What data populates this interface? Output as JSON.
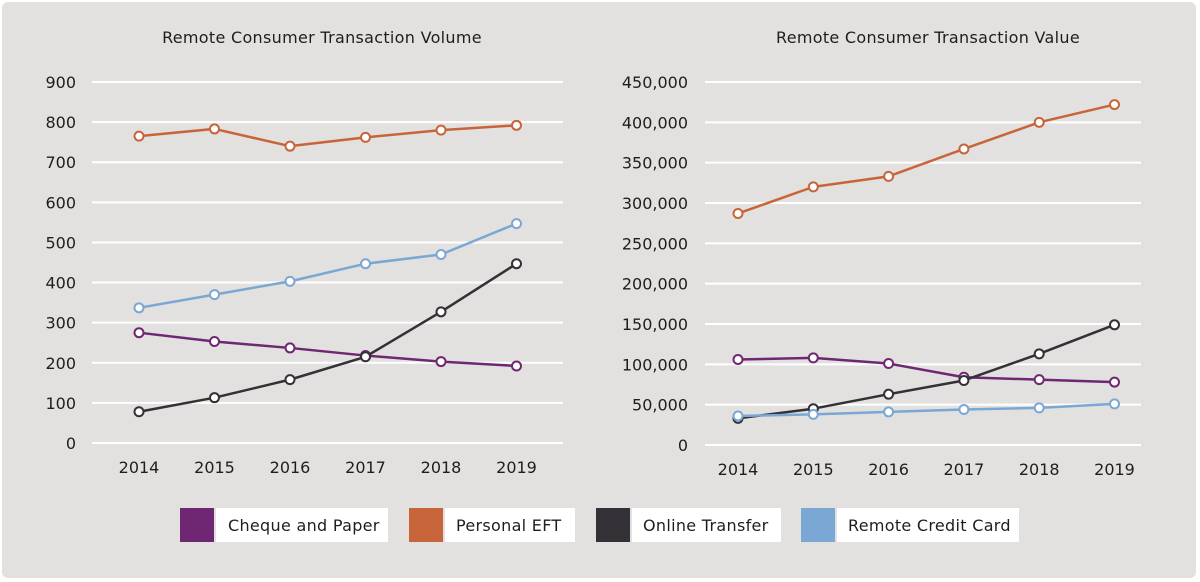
{
  "chart_data": [
    {
      "type": "line",
      "title": "Remote Consumer Transaction Volume",
      "categories": [
        "2014",
        "2015",
        "2016",
        "2017",
        "2018",
        "2019"
      ],
      "ylim": [
        0,
        900
      ],
      "yticks": [
        0,
        100,
        200,
        300,
        400,
        500,
        600,
        700,
        800,
        900
      ],
      "ytick_labels": [
        "0",
        "100",
        "200",
        "300",
        "400",
        "500",
        "600",
        "700",
        "800",
        "900"
      ],
      "grid": true,
      "series": [
        {
          "name": "Cheque and Paper",
          "color": "#6f2773",
          "values": [
            275,
            253,
            237,
            218,
            203,
            192
          ]
        },
        {
          "name": "Personal EFT",
          "color": "#c8643a",
          "values": [
            765,
            783,
            740,
            762,
            780,
            792
          ]
        },
        {
          "name": "Online Transfer",
          "color": "#333135",
          "values": [
            78,
            113,
            158,
            215,
            327,
            447
          ]
        },
        {
          "name": "Remote Credit Card",
          "color": "#7aa7d4",
          "values": [
            337,
            370,
            403,
            447,
            470,
            547
          ]
        }
      ]
    },
    {
      "type": "line",
      "title": "Remote Consumer Transaction Value",
      "categories": [
        "2014",
        "2015",
        "2016",
        "2017",
        "2018",
        "2019"
      ],
      "ylim": [
        0,
        450000
      ],
      "yticks": [
        0,
        50000,
        100000,
        150000,
        200000,
        250000,
        300000,
        350000,
        400000,
        450000
      ],
      "ytick_labels": [
        "0",
        "50,000",
        "100,000",
        "150,000",
        "200,000",
        "250,000",
        "300,000",
        "350,000",
        "400,000",
        "450,000"
      ],
      "grid": true,
      "series": [
        {
          "name": "Cheque and Paper",
          "color": "#6f2773",
          "values": [
            106000,
            108000,
            101000,
            84000,
            81000,
            78000
          ]
        },
        {
          "name": "Personal EFT",
          "color": "#c8643a",
          "values": [
            287000,
            320000,
            333000,
            367000,
            400000,
            422000
          ]
        },
        {
          "name": "Online Transfer",
          "color": "#333135",
          "values": [
            33000,
            45000,
            63000,
            80000,
            113000,
            149000
          ]
        },
        {
          "name": "Remote Credit Card",
          "color": "#7aa7d4",
          "values": [
            36000,
            38000,
            41000,
            44000,
            46000,
            51000
          ]
        }
      ]
    }
  ],
  "legend": {
    "placement": "bottom",
    "items": [
      {
        "label": "Cheque and Paper",
        "color": "#6f2773"
      },
      {
        "label": "Personal EFT",
        "color": "#c8643a"
      },
      {
        "label": "Online Transfer",
        "color": "#333135"
      },
      {
        "label": "Remote Credit Card",
        "color": "#7aa7d4"
      }
    ]
  }
}
